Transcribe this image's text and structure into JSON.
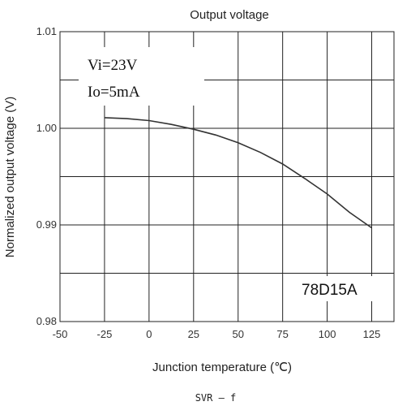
{
  "chart_data": {
    "type": "line",
    "title": "Output voltage",
    "xlabel": "Junction temperature (℃)",
    "ylabel": "Normalized output voltage (V)",
    "xlim": [
      -50,
      137.5
    ],
    "ylim": [
      0.98,
      1.01
    ],
    "x_ticks": [
      "-50",
      "-25",
      "0",
      "25",
      "50",
      "75",
      "100",
      "125"
    ],
    "y_ticks": [
      "0.98",
      "0.99",
      "1.00",
      "1.01"
    ],
    "grid": true,
    "series": [
      {
        "x": [
          -25,
          -12.5,
          0,
          12.5,
          25,
          37.5,
          50,
          62.5,
          75,
          87.5,
          100,
          112.5,
          125
        ],
        "y": [
          1.0011,
          1.001,
          1.0008,
          1.0004,
          0.9999,
          0.9993,
          0.9985,
          0.9975,
          0.9963,
          0.9948,
          0.9932,
          0.9913,
          0.9897
        ]
      }
    ],
    "annotations": [
      {
        "text": "Vi=23V"
      },
      {
        "text": "Io=5mA"
      },
      {
        "text": "78D15A"
      }
    ],
    "caption": "SVR — f"
  }
}
